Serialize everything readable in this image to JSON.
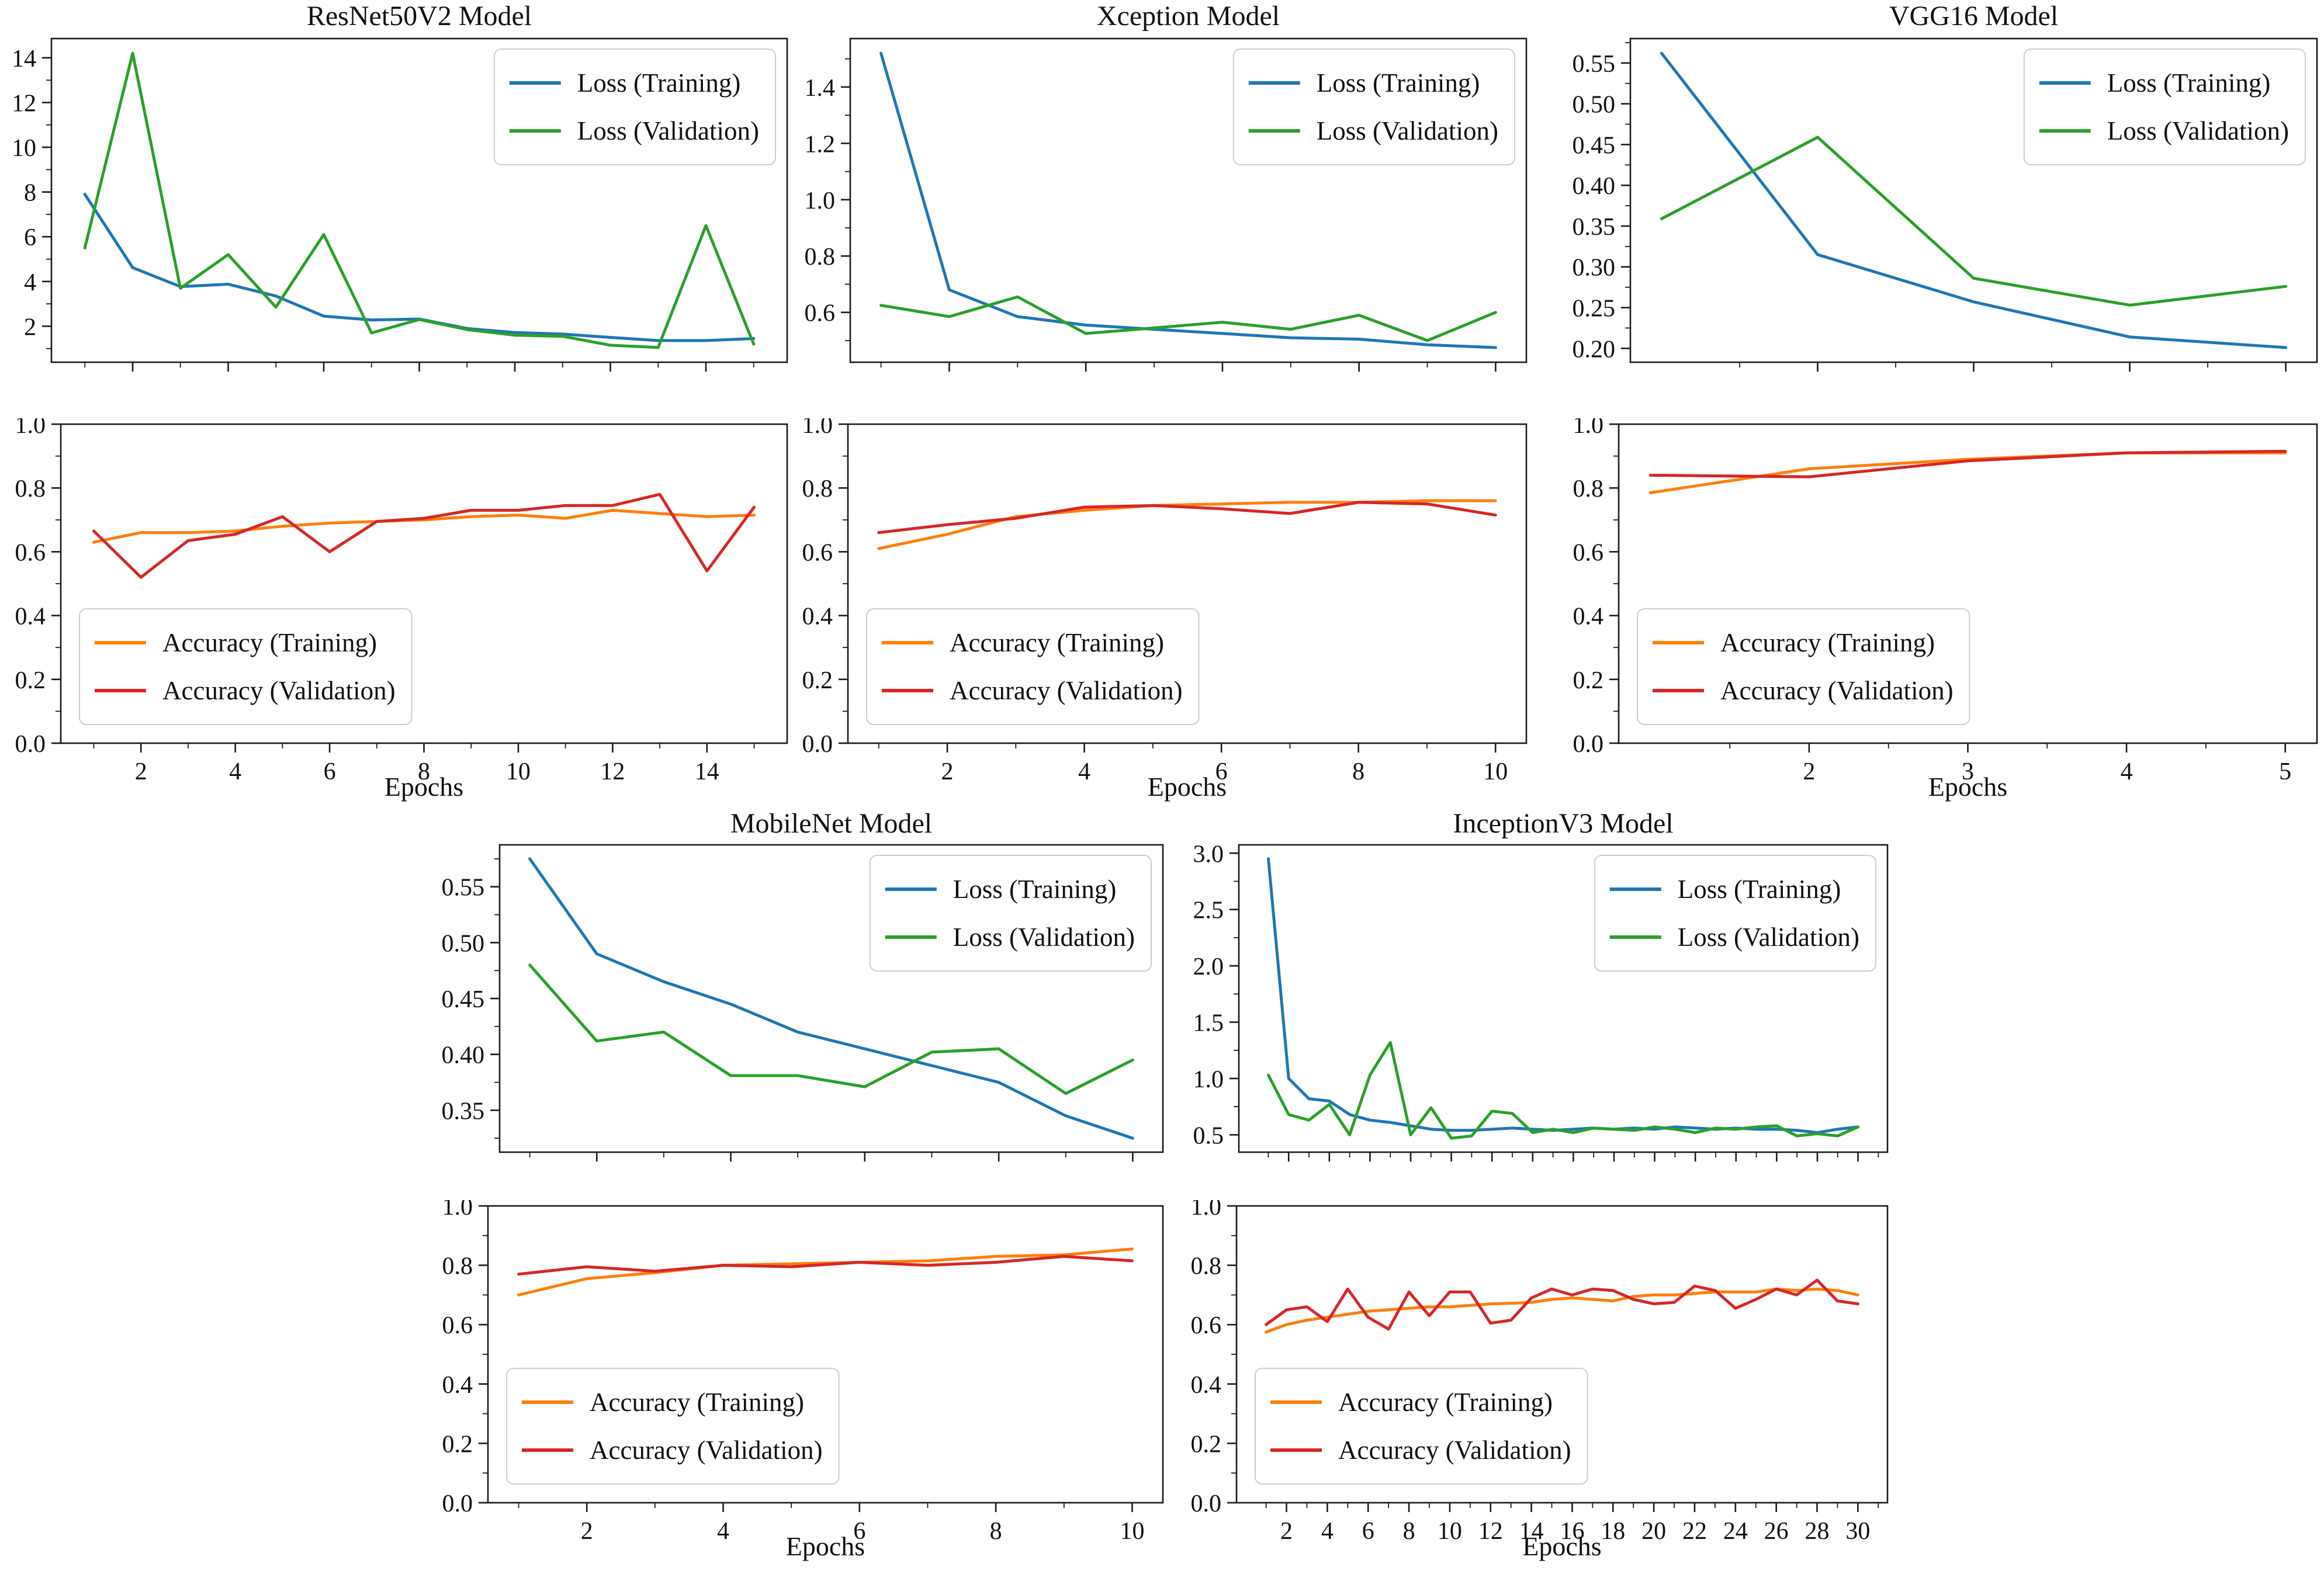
{
  "ui": {
    "xlabel": "Epochs",
    "legend": {
      "loss_train": "Loss (Training)",
      "loss_val": "Loss (Validation)",
      "acc_train": "Accuracy (Training)",
      "acc_val": "Accuracy (Validation)"
    }
  },
  "colors": {
    "train_loss": "#1f77b4",
    "val_loss": "#2ca02c",
    "train_acc": "#ff7f0e",
    "val_acc": "#d62728",
    "spine": "#1a1a1a",
    "legend_border": "#cccccc",
    "legend_bg": "#ffffff"
  },
  "chart_data": {
    "type": "line",
    "models": [
      {
        "title": "ResNet50V2 Model",
        "xlabel": "Epochs",
        "epochs": 15,
        "x_ticks": [
          2,
          4,
          6,
          8,
          10,
          12,
          14
        ],
        "xlim": [
          0.3,
          15.7
        ],
        "loss": {
          "ylim": [
            0.39,
            14.86
          ],
          "ytick_vals": [
            2,
            4,
            6,
            8,
            10,
            12,
            14
          ],
          "ytick_labels": [
            "2",
            "4",
            "6",
            "8",
            "10",
            "12",
            "14"
          ],
          "legend_pos": "upper right",
          "series": [
            {
              "name": "Loss (Training)",
              "color": "#1f77b4",
              "values": [
                7.9,
                4.62,
                3.77,
                3.88,
                3.35,
                2.45,
                2.28,
                2.32,
                1.9,
                1.72,
                1.65,
                1.5,
                1.36,
                1.36,
                1.45
              ]
            },
            {
              "name": "Loss (Validation)",
              "color": "#2ca02c",
              "values": [
                5.5,
                14.2,
                3.7,
                5.2,
                2.85,
                6.1,
                1.7,
                2.3,
                1.85,
                1.6,
                1.55,
                1.15,
                1.05,
                6.5,
                1.2
              ]
            }
          ]
        },
        "accuracy": {
          "ylim": [
            0.0,
            1.0
          ],
          "ytick_vals": [
            0.0,
            0.2,
            0.4,
            0.6,
            0.8,
            1.0
          ],
          "ytick_labels": [
            "0.0",
            "0.2",
            "0.4",
            "0.6",
            "0.8",
            "1.0"
          ],
          "legend_pos": "lower left",
          "series": [
            {
              "name": "Accuracy (Training)",
              "color": "#ff7f0e",
              "values": [
                0.63,
                0.66,
                0.66,
                0.665,
                0.68,
                0.69,
                0.695,
                0.7,
                0.71,
                0.715,
                0.705,
                0.73,
                0.72,
                0.71,
                0.715
              ]
            },
            {
              "name": "Accuracy (Validation)",
              "color": "#d62728",
              "values": [
                0.665,
                0.52,
                0.635,
                0.655,
                0.71,
                0.6,
                0.695,
                0.705,
                0.73,
                0.73,
                0.745,
                0.745,
                0.78,
                0.54,
                0.74
              ]
            }
          ]
        }
      },
      {
        "title": "Xception Model",
        "xlabel": "Epochs",
        "epochs": 10,
        "x_ticks": [
          2,
          4,
          6,
          8,
          10
        ],
        "xlim": [
          0.55,
          10.45
        ],
        "loss": {
          "ylim": [
            0.423,
            1.572
          ],
          "ytick_vals": [
            0.6,
            0.8,
            1.0,
            1.2,
            1.4
          ],
          "ytick_labels": [
            "0.6",
            "0.8",
            "1.0",
            "1.2",
            "1.4"
          ],
          "legend_pos": "upper right",
          "series": [
            {
              "name": "Loss (Training)",
              "color": "#1f77b4",
              "values": [
                1.52,
                0.68,
                0.585,
                0.555,
                0.54,
                0.525,
                0.51,
                0.505,
                0.485,
                0.475
              ]
            },
            {
              "name": "Loss (Validation)",
              "color": "#2ca02c",
              "values": [
                0.625,
                0.585,
                0.655,
                0.525,
                0.545,
                0.565,
                0.54,
                0.59,
                0.5,
                0.6
              ]
            }
          ]
        },
        "accuracy": {
          "ylim": [
            0.0,
            1.0
          ],
          "ytick_vals": [
            0.0,
            0.2,
            0.4,
            0.6,
            0.8,
            1.0
          ],
          "ytick_labels": [
            "0.0",
            "0.2",
            "0.4",
            "0.6",
            "0.8",
            "1.0"
          ],
          "legend_pos": "lower left",
          "series": [
            {
              "name": "Accuracy (Training)",
              "color": "#ff7f0e",
              "values": [
                0.61,
                0.655,
                0.71,
                0.73,
                0.745,
                0.75,
                0.755,
                0.755,
                0.76,
                0.76
              ]
            },
            {
              "name": "Accuracy (Validation)",
              "color": "#d62728",
              "values": [
                0.66,
                0.685,
                0.705,
                0.74,
                0.745,
                0.735,
                0.72,
                0.755,
                0.75,
                0.715
              ]
            }
          ]
        }
      },
      {
        "title": "VGG16 Model",
        "xlabel": "Epochs",
        "epochs": 5,
        "x_ticks": [
          2,
          3,
          4,
          5
        ],
        "xlim": [
          0.8,
          5.2
        ],
        "loss": {
          "ylim": [
            0.183,
            0.58
          ],
          "ytick_vals": [
            0.2,
            0.25,
            0.3,
            0.35,
            0.4,
            0.45,
            0.5,
            0.55
          ],
          "ytick_labels": [
            "0.20",
            "0.25",
            "0.30",
            "0.35",
            "0.40",
            "0.45",
            "0.50",
            "0.55"
          ],
          "legend_pos": "upper right",
          "series": [
            {
              "name": "Loss (Training)",
              "color": "#1f77b4",
              "values": [
                0.562,
                0.315,
                0.257,
                0.214,
                0.201
              ]
            },
            {
              "name": "Loss (Validation)",
              "color": "#2ca02c",
              "values": [
                0.359,
                0.459,
                0.286,
                0.253,
                0.276
              ]
            }
          ]
        },
        "accuracy": {
          "ylim": [
            0.0,
            1.0
          ],
          "ytick_vals": [
            0.0,
            0.2,
            0.4,
            0.6,
            0.8,
            1.0
          ],
          "ytick_labels": [
            "0.0",
            "0.2",
            "0.4",
            "0.6",
            "0.8",
            "1.0"
          ],
          "legend_pos": "lower left",
          "series": [
            {
              "name": "Accuracy (Training)",
              "color": "#ff7f0e",
              "values": [
                0.785,
                0.86,
                0.89,
                0.91,
                0.91
              ]
            },
            {
              "name": "Accuracy (Validation)",
              "color": "#d62728",
              "values": [
                0.84,
                0.835,
                0.885,
                0.91,
                0.915
              ]
            }
          ]
        }
      },
      {
        "title": "MobileNet Model",
        "xlabel": "Epochs",
        "epochs": 10,
        "x_ticks": [
          2,
          4,
          6,
          8,
          10
        ],
        "xlim": [
          0.55,
          10.45
        ],
        "loss": {
          "ylim": [
            0.3125,
            0.5875
          ],
          "ytick_vals": [
            0.35,
            0.4,
            0.45,
            0.5,
            0.55
          ],
          "ytick_labels": [
            "0.35",
            "0.40",
            "0.45",
            "0.50",
            "0.55"
          ],
          "legend_pos": "upper right",
          "series": [
            {
              "name": "Loss (Training)",
              "color": "#1f77b4",
              "values": [
                0.575,
                0.49,
                0.465,
                0.445,
                0.42,
                0.405,
                0.39,
                0.375,
                0.345,
                0.325
              ]
            },
            {
              "name": "Loss (Validation)",
              "color": "#2ca02c",
              "values": [
                0.48,
                0.412,
                0.42,
                0.381,
                0.381,
                0.371,
                0.402,
                0.405,
                0.365,
                0.395
              ]
            }
          ]
        },
        "accuracy": {
          "ylim": [
            0.0,
            1.0
          ],
          "ytick_vals": [
            0.0,
            0.2,
            0.4,
            0.6,
            0.8,
            1.0
          ],
          "ytick_labels": [
            "0.0",
            "0.2",
            "0.4",
            "0.6",
            "0.8",
            "1.0"
          ],
          "legend_pos": "lower left",
          "series": [
            {
              "name": "Accuracy (Training)",
              "color": "#ff7f0e",
              "values": [
                0.7,
                0.755,
                0.775,
                0.8,
                0.805,
                0.81,
                0.815,
                0.83,
                0.835,
                0.855
              ]
            },
            {
              "name": "Accuracy (Validation)",
              "color": "#d62728",
              "values": [
                0.77,
                0.795,
                0.78,
                0.8,
                0.795,
                0.81,
                0.8,
                0.81,
                0.83,
                0.815
              ]
            }
          ]
        }
      },
      {
        "title": "InceptionV3 Model",
        "xlabel": "Epochs",
        "epochs": 30,
        "x_ticks": [
          2,
          4,
          6,
          8,
          10,
          12,
          14,
          16,
          18,
          20,
          22,
          24,
          26,
          28,
          30
        ],
        "xlim": [
          -0.45,
          31.45
        ],
        "loss": {
          "ylim": [
            0.346,
            3.074
          ],
          "ytick_vals": [
            0.5,
            1.0,
            1.5,
            2.0,
            2.5,
            3.0
          ],
          "ytick_labels": [
            "0.5",
            "1.0",
            "1.5",
            "2.0",
            "2.5",
            "3.0"
          ],
          "legend_pos": "upper right",
          "series": [
            {
              "name": "Loss (Training)",
              "color": "#1f77b4",
              "values": [
                2.95,
                1.0,
                0.82,
                0.8,
                0.68,
                0.63,
                0.61,
                0.58,
                0.55,
                0.54,
                0.54,
                0.55,
                0.56,
                0.55,
                0.54,
                0.55,
                0.56,
                0.55,
                0.56,
                0.55,
                0.57,
                0.56,
                0.55,
                0.56,
                0.55,
                0.55,
                0.54,
                0.52,
                0.55,
                0.57
              ]
            },
            {
              "name": "Loss (Validation)",
              "color": "#2ca02c",
              "values": [
                1.03,
                0.68,
                0.63,
                0.77,
                0.5,
                1.03,
                1.32,
                0.5,
                0.74,
                0.47,
                0.49,
                0.71,
                0.69,
                0.52,
                0.55,
                0.52,
                0.56,
                0.55,
                0.54,
                0.57,
                0.55,
                0.52,
                0.56,
                0.55,
                0.57,
                0.58,
                0.49,
                0.51,
                0.49,
                0.57
              ]
            }
          ]
        },
        "accuracy": {
          "ylim": [
            0.0,
            1.0
          ],
          "ytick_vals": [
            0.0,
            0.2,
            0.4,
            0.6,
            0.8,
            1.0
          ],
          "ytick_labels": [
            "0.0",
            "0.2",
            "0.4",
            "0.6",
            "0.8",
            "1.0"
          ],
          "legend_pos": "lower left",
          "series": [
            {
              "name": "Accuracy (Training)",
              "color": "#ff7f0e",
              "values": [
                0.575,
                0.6,
                0.615,
                0.625,
                0.635,
                0.645,
                0.65,
                0.655,
                0.66,
                0.66,
                0.665,
                0.67,
                0.672,
                0.675,
                0.685,
                0.69,
                0.685,
                0.68,
                0.695,
                0.7,
                0.7,
                0.705,
                0.71,
                0.71,
                0.71,
                0.72,
                0.715,
                0.72,
                0.715,
                0.7
              ]
            },
            {
              "name": "Accuracy (Validation)",
              "color": "#d62728",
              "values": [
                0.6,
                0.65,
                0.66,
                0.61,
                0.72,
                0.625,
                0.585,
                0.71,
                0.63,
                0.71,
                0.71,
                0.605,
                0.615,
                0.69,
                0.72,
                0.7,
                0.72,
                0.715,
                0.685,
                0.67,
                0.675,
                0.73,
                0.715,
                0.655,
                0.685,
                0.72,
                0.7,
                0.75,
                0.68,
                0.67
              ]
            }
          ]
        }
      }
    ]
  }
}
